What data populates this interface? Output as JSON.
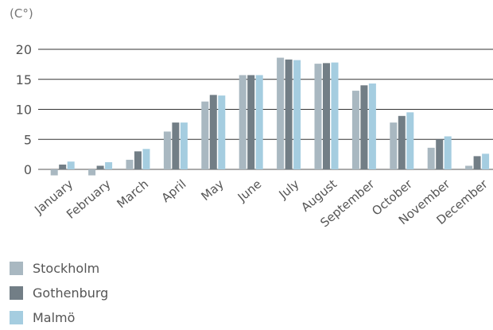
{
  "chart_data": {
    "type": "bar",
    "unit_label": "(C°)",
    "categories": [
      "January",
      "February",
      "March",
      "April",
      "May",
      "June",
      "July",
      "August",
      "September",
      "October",
      "November",
      "December"
    ],
    "series": [
      {
        "name": "Stockholm",
        "color": "#a9b8c1",
        "values": [
          -1.0,
          -1.0,
          1.6,
          6.3,
          11.3,
          15.7,
          18.6,
          17.6,
          13.1,
          7.8,
          3.6,
          0.6
        ]
      },
      {
        "name": "Gothenburg",
        "color": "#727e86",
        "values": [
          0.8,
          0.6,
          3.0,
          7.8,
          12.4,
          15.7,
          18.3,
          17.7,
          14.0,
          8.9,
          5.0,
          2.2
        ]
      },
      {
        "name": "Malmö",
        "color": "#a5cde0",
        "values": [
          1.3,
          1.2,
          3.4,
          7.8,
          12.3,
          15.7,
          18.2,
          17.8,
          14.3,
          9.5,
          5.5,
          2.6
        ]
      }
    ],
    "yticks": [
      0,
      5,
      10,
      15,
      20
    ],
    "ylim": [
      -1,
      20
    ],
    "grid": true,
    "legend_position": "bottom-left"
  }
}
